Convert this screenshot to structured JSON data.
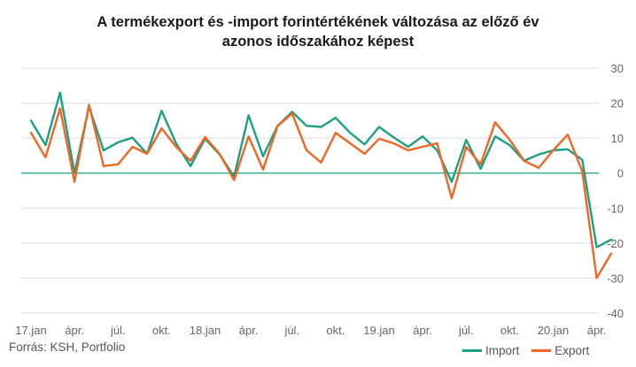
{
  "title": {
    "line1": "A termékexport és -import forintértékének változása az előző év",
    "line2": "azonos időszakához képest"
  },
  "source": "Forrás: KSH, Portfolio",
  "colors": {
    "import": "#1aa083",
    "export": "#f26522",
    "zero": "#1aa083",
    "grid": "#dddddd"
  },
  "chart_data": {
    "type": "line",
    "title": "A termékexport és -import forintértékének változása az előző év azonos időszakához képest",
    "ylim": [
      -40,
      30
    ],
    "yticks": [
      30,
      20,
      10,
      0,
      -10,
      -20,
      -30,
      -40
    ],
    "grid": true,
    "legend_position": "bottom-right",
    "x_tick_labels": [
      {
        "index": 0,
        "label": "17.jan"
      },
      {
        "index": 3,
        "label": "ápr."
      },
      {
        "index": 6,
        "label": "júl."
      },
      {
        "index": 9,
        "label": "okt."
      },
      {
        "index": 12,
        "label": "18.jan"
      },
      {
        "index": 15,
        "label": "ápr."
      },
      {
        "index": 18,
        "label": "júl."
      },
      {
        "index": 21,
        "label": "okt."
      },
      {
        "index": 24,
        "label": "19.jan"
      },
      {
        "index": 27,
        "label": "ápr."
      },
      {
        "index": 30,
        "label": "júl."
      },
      {
        "index": 33,
        "label": "okt."
      },
      {
        "index": 36,
        "label": "20.jan"
      },
      {
        "index": 39,
        "label": "ápr."
      }
    ],
    "series": [
      {
        "name": "Import",
        "values": [
          15,
          8,
          23,
          0,
          19,
          6.5,
          8.8,
          10.1,
          5.5,
          17.8,
          8.5,
          2,
          9.8,
          5.3,
          -1,
          16.5,
          4.8,
          13.5,
          17.5,
          13.5,
          13.2,
          15.8,
          11.5,
          8.2,
          13.2,
          10.2,
          7.5,
          10.5,
          6.5,
          -2.5,
          9.5,
          1.2,
          10.5,
          8,
          3.5,
          5.3,
          6.5,
          6.8,
          3.8,
          -21.2,
          -19
        ]
      },
      {
        "name": "Export",
        "values": [
          11.5,
          4.5,
          18.5,
          -2.5,
          19.5,
          2,
          2.5,
          7.5,
          5.5,
          12.8,
          7.5,
          3.5,
          10.3,
          5.5,
          -2,
          10.5,
          1,
          13.5,
          17,
          6.5,
          3,
          11.5,
          8.5,
          5.5,
          9.8,
          8.5,
          6.5,
          7.5,
          8.5,
          -7.2,
          7.5,
          2.5,
          14.5,
          9.5,
          3.5,
          1.5,
          6.5,
          11,
          0.5,
          -30,
          -23
        ]
      }
    ]
  }
}
